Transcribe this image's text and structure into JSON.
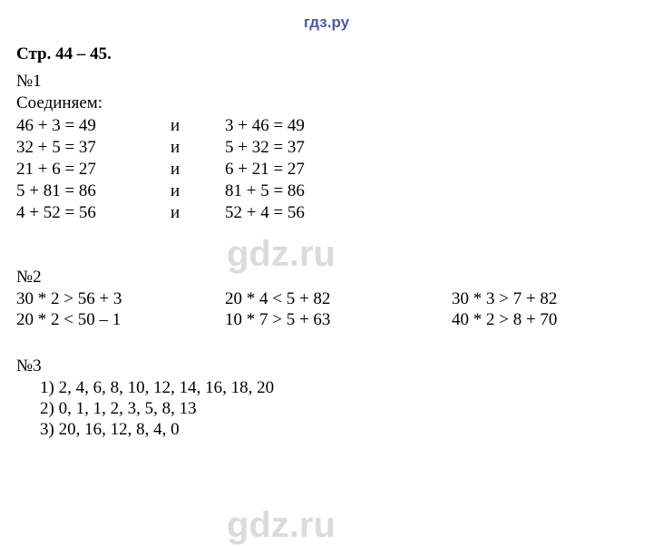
{
  "logo": "гдз.ру",
  "title": "Стр. 44 – 45.",
  "section1": {
    "num": "№1",
    "label": "Соединяем:",
    "conj": "и",
    "rows": [
      {
        "left": "46 + 3 = 49",
        "right": "3 + 46 = 49"
      },
      {
        "left": "32 + 5 = 37",
        "right": "5 + 32 = 37"
      },
      {
        "left": "21 + 6 = 27",
        "right": "6 + 21 = 27"
      },
      {
        "left": "5 + 81 = 86",
        "right": "81 + 5 = 86"
      },
      {
        "left": "4 + 52 = 56",
        "right": "52 + 4 = 56"
      }
    ]
  },
  "watermark": "gdz.ru",
  "section2": {
    "num": "№2",
    "rows": [
      {
        "c1": "30 * 2 > 56 + 3",
        "c2": "20 * 4 < 5 + 82",
        "c3": "30 * 3 > 7 + 82"
      },
      {
        "c1": "20 * 2 < 50 – 1",
        "c2": "10 * 7 > 5 + 63",
        "c3": "40 * 2 > 8 + 70"
      }
    ]
  },
  "section3": {
    "num": "№3",
    "items": [
      "1)  2, 4, 6, 8, 10, 12, 14, 16, 18, 20",
      "2)  0, 1, 1, 2, 3, 5, 8, 13",
      "3)  20, 16, 12, 8, 4, 0"
    ]
  }
}
